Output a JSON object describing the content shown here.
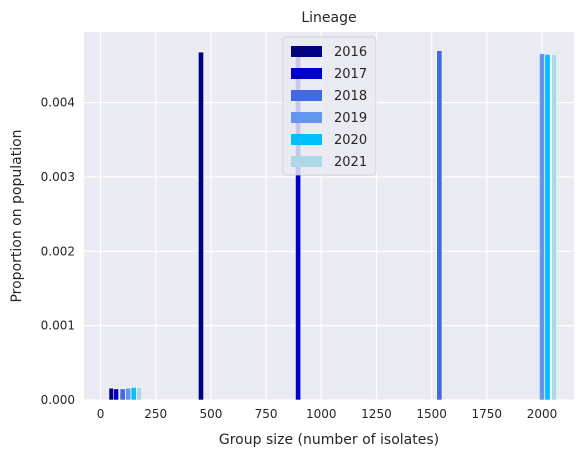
{
  "chart_data": {
    "type": "bar",
    "title": "Lineage",
    "xlabel": "Group size (number of isolates)",
    "ylabel": "Proportion on population",
    "xlim": [
      -75,
      2145
    ],
    "ylim": [
      0,
      0.00495
    ],
    "x_ticks": [
      0,
      250,
      500,
      750,
      1000,
      1250,
      1500,
      1750,
      2000
    ],
    "y_ticks": [
      0.0,
      0.001,
      0.002,
      0.003,
      0.004
    ],
    "y_tick_labels": [
      "0.000",
      "0.001",
      "0.002",
      "0.003",
      "0.004"
    ],
    "grid": true,
    "legend": "top-center",
    "bar_width": 24,
    "series": [
      {
        "name": "2016",
        "color": "#000080",
        "bars": [
          {
            "x": 50,
            "y": 0.00016
          },
          {
            "x": 455,
            "y": 0.00468
          }
        ]
      },
      {
        "name": "2017",
        "color": "#0000cd",
        "bars": [
          {
            "x": 70,
            "y": 0.00015
          },
          {
            "x": 895,
            "y": 0.00468
          }
        ]
      },
      {
        "name": "2018",
        "color": "#4169e1",
        "bars": [
          {
            "x": 100,
            "y": 0.00015
          },
          {
            "x": 1535,
            "y": 0.0047
          }
        ]
      },
      {
        "name": "2019",
        "color": "#6495ed",
        "bars": [
          {
            "x": 125,
            "y": 0.00016
          },
          {
            "x": 2000,
            "y": 0.00466
          }
        ]
      },
      {
        "name": "2020",
        "color": "#00bfff",
        "bars": [
          {
            "x": 150,
            "y": 0.00017
          },
          {
            "x": 2025,
            "y": 0.00465
          }
        ]
      },
      {
        "name": "2021",
        "color": "#add8e6",
        "bars": [
          {
            "x": 175,
            "y": 0.00017
          },
          {
            "x": 2055,
            "y": 0.00465
          }
        ]
      }
    ]
  }
}
